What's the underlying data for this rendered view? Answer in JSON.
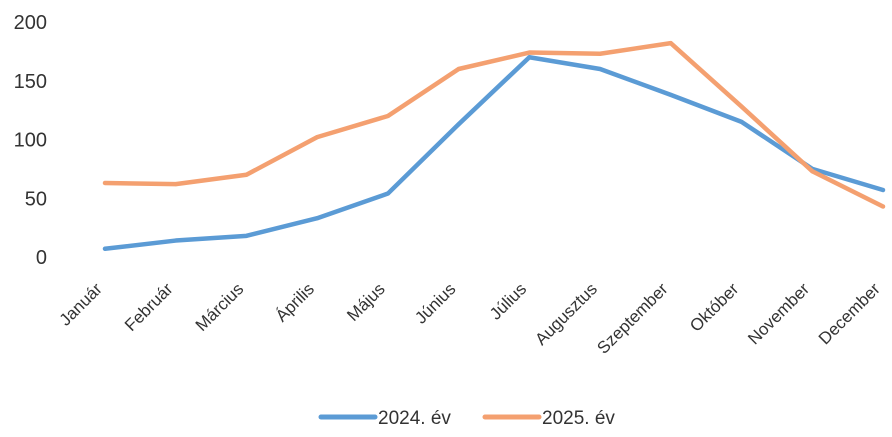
{
  "chart_data": {
    "type": "line",
    "title": "",
    "xlabel": "",
    "ylabel": "",
    "categories": [
      "Január",
      "Február",
      "Március",
      "Április",
      "Május",
      "Június",
      "Július",
      "Augusztus",
      "Szeptember",
      "Október",
      "November",
      "December"
    ],
    "series": [
      {
        "name": "2024. év",
        "color": "#5B9BD5",
        "values": [
          7,
          14,
          18,
          33,
          54,
          113,
          170,
          160,
          138,
          115,
          75,
          57
        ]
      },
      {
        "name": "2025. év",
        "color": "#F4A070",
        "values": [
          63,
          62,
          70,
          102,
          120,
          160,
          174,
          173,
          182,
          128,
          73,
          43
        ]
      }
    ],
    "ylim": [
      0,
      200
    ],
    "yticks": [
      0,
      50,
      100,
      150,
      200
    ],
    "grid": false,
    "legend_position": "bottom"
  }
}
